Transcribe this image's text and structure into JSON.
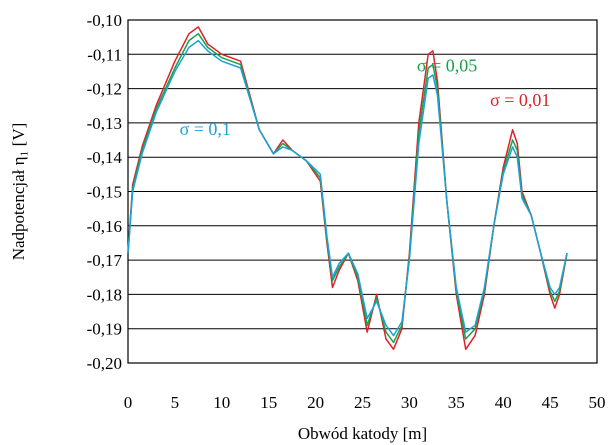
{
  "chart_data": {
    "type": "line",
    "title": "",
    "xlabel": "Obwód katody [m]",
    "ylabel": "Nadpotencjał η₁ [V]",
    "xlim": [
      0,
      50
    ],
    "ylim": [
      -0.2,
      -0.1
    ],
    "x_ticks": [
      "0",
      "5",
      "10",
      "15",
      "20",
      "25",
      "30",
      "35",
      "40",
      "45",
      "50"
    ],
    "y_ticks": [
      "-0,10",
      "-0,11",
      "-0,12",
      "-0,13",
      "-0,14",
      "-0,15",
      "-0,16",
      "-0,17",
      "-0,18",
      "-0,19",
      "-0,20"
    ],
    "grid": "horizontal",
    "legend": "none",
    "series": [
      {
        "name": "σ = 0,01",
        "color": "#e0202a",
        "x": [
          0,
          0.5,
          1.5,
          3,
          5,
          6.5,
          7.5,
          8.5,
          10,
          12,
          14,
          15.5,
          16.5,
          17.5,
          19,
          20.5,
          21.2,
          21.8,
          22.5,
          23.5,
          24.5,
          25.5,
          26.5,
          27.5,
          28.3,
          29.2,
          30,
          31,
          32,
          32.5,
          33,
          34,
          35,
          36,
          37,
          38,
          39,
          40,
          41,
          41.5,
          42,
          43,
          44,
          45,
          45.5,
          46,
          46.8
        ],
        "values": [
          -0.168,
          -0.148,
          -0.137,
          -0.125,
          -0.112,
          -0.104,
          -0.102,
          -0.107,
          -0.11,
          -0.112,
          -0.132,
          -0.139,
          -0.135,
          -0.138,
          -0.141,
          -0.147,
          -0.165,
          -0.178,
          -0.173,
          -0.168,
          -0.176,
          -0.191,
          -0.18,
          -0.193,
          -0.196,
          -0.19,
          -0.168,
          -0.13,
          -0.11,
          -0.109,
          -0.118,
          -0.153,
          -0.18,
          -0.196,
          -0.192,
          -0.18,
          -0.16,
          -0.143,
          -0.132,
          -0.136,
          -0.15,
          -0.157,
          -0.168,
          -0.18,
          -0.184,
          -0.18,
          -0.168
        ]
      },
      {
        "name": "σ = 0,05",
        "color": "#17a24a",
        "x": [
          0,
          0.5,
          1.5,
          3,
          5,
          6.5,
          7.5,
          8.5,
          10,
          12,
          14,
          15.5,
          16.5,
          17.5,
          19,
          20.5,
          21.2,
          21.8,
          22.5,
          23.5,
          24.5,
          25.5,
          26.5,
          27.5,
          28.3,
          29.2,
          30,
          31,
          32,
          32.5,
          33,
          34,
          35,
          36,
          37,
          38,
          39,
          40,
          41,
          41.5,
          42,
          43,
          44,
          45,
          45.5,
          46,
          46.8
        ],
        "values": [
          -0.168,
          -0.149,
          -0.138,
          -0.126,
          -0.114,
          -0.106,
          -0.104,
          -0.108,
          -0.111,
          -0.113,
          -0.132,
          -0.139,
          -0.136,
          -0.138,
          -0.141,
          -0.146,
          -0.164,
          -0.176,
          -0.172,
          -0.168,
          -0.175,
          -0.189,
          -0.181,
          -0.191,
          -0.194,
          -0.189,
          -0.169,
          -0.133,
          -0.114,
          -0.113,
          -0.12,
          -0.153,
          -0.179,
          -0.193,
          -0.19,
          -0.179,
          -0.16,
          -0.144,
          -0.135,
          -0.138,
          -0.151,
          -0.157,
          -0.168,
          -0.179,
          -0.182,
          -0.179,
          -0.168
        ]
      },
      {
        "name": "σ = 0,1",
        "color": "#1ea0d8",
        "x": [
          0,
          0.5,
          1.5,
          3,
          5,
          6.5,
          7.5,
          8.5,
          10,
          12,
          14,
          15.5,
          16.5,
          17.5,
          19,
          20.5,
          21.2,
          21.8,
          22.5,
          23.5,
          24.5,
          25.5,
          26.5,
          27.5,
          28.3,
          29.2,
          30,
          31,
          32,
          32.5,
          33,
          34,
          35,
          36,
          37,
          38,
          39,
          40,
          41,
          41.5,
          42,
          43,
          44,
          45,
          45.5,
          46,
          46.8
        ],
        "values": [
          -0.168,
          -0.15,
          -0.139,
          -0.127,
          -0.115,
          -0.108,
          -0.106,
          -0.109,
          -0.112,
          -0.114,
          -0.132,
          -0.139,
          -0.137,
          -0.138,
          -0.141,
          -0.145,
          -0.163,
          -0.175,
          -0.171,
          -0.168,
          -0.174,
          -0.187,
          -0.182,
          -0.189,
          -0.192,
          -0.188,
          -0.17,
          -0.136,
          -0.117,
          -0.116,
          -0.122,
          -0.153,
          -0.178,
          -0.191,
          -0.189,
          -0.178,
          -0.16,
          -0.145,
          -0.137,
          -0.14,
          -0.152,
          -0.157,
          -0.168,
          -0.178,
          -0.18,
          -0.178,
          -0.168
        ]
      }
    ],
    "annotations": [
      {
        "text": "σ = 0,05",
        "color": "#17a24a",
        "x": 30.8,
        "y": -0.115
      },
      {
        "text": "σ = 0,01",
        "color": "#e0202a",
        "x": 38.6,
        "y": -0.125
      },
      {
        "text": "σ = 0,1",
        "color": "#1ea0d8",
        "x": 5.5,
        "y": -0.1335
      }
    ]
  }
}
